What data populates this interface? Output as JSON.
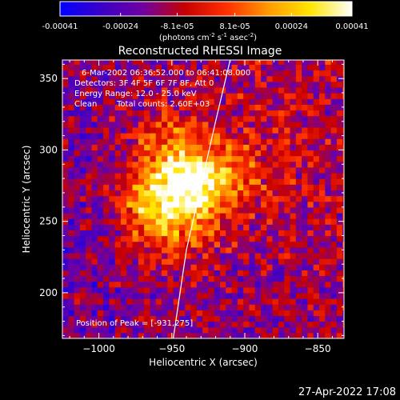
{
  "colorbar": {
    "ticks": [
      "-0.00041",
      "-0.00024",
      "-8.1e-05",
      "8.1e-05",
      "0.00024",
      "0.00041"
    ],
    "tick_values": [
      -0.00041,
      -0.00024,
      -8.1e-05,
      8.1e-05,
      0.00024,
      0.00041
    ],
    "range": [
      -0.00041,
      0.00041
    ],
    "unit_base": "(photons cm",
    "unit_sup1": "-2",
    "unit_mid": " s",
    "unit_sup2": "-1",
    "unit_end": " asec",
    "unit_sup3": "-2",
    "unit_close": ")",
    "colormap": [
      "#0000ff",
      "#3b00c8",
      "#7000a0",
      "#c80000",
      "#ff3000",
      "#ff9a00",
      "#ffe600",
      "#ffffff"
    ]
  },
  "annotations": {
    "time_range": "6-Mar-2002 06:36:52.000 to 06:41:08.000",
    "detectors": "Detectors: 3F 4F 5F 6F 7F 8F, Att 0",
    "energy": "Energy Range: 12.0 - 25.0 keV",
    "clean_label": "Clean",
    "total_counts": "Total counts: 2.60E+03",
    "peak": "Position of Peak = [-931,275]"
  },
  "footer": {
    "timestamp": "27-Apr-2022 17:08"
  },
  "chart_data": {
    "type": "heatmap",
    "title": "Reconstructed RHESSI Image",
    "xlabel": "Heliocentric X (arcsec)",
    "ylabel": "Heliocentric Y (arcsec)",
    "xlim": [
      -1025,
      -832
    ],
    "ylim": [
      168,
      363
    ],
    "xticks": [
      -1000,
      -950,
      -900,
      -850
    ],
    "xtick_labels": [
      "−1000",
      "−950",
      "−900",
      "−850"
    ],
    "yticks": [
      200,
      250,
      300,
      350
    ],
    "ytick_labels": [
      "200",
      "250",
      "300",
      "350"
    ],
    "peak": [
      -931,
      275
    ],
    "limb": [
      [
        -949,
        168
      ],
      [
        -940,
        230
      ],
      [
        -930,
        275
      ],
      [
        -920,
        320
      ],
      [
        -910,
        363
      ]
    ],
    "limb_color": "#ffffff",
    "sources": [
      {
        "x": -945,
        "y": 275,
        "sx": 22,
        "sy": 28,
        "amp": 0.95
      },
      {
        "x": -932,
        "y": 277,
        "sx": 10,
        "sy": 10,
        "amp": 0.35
      },
      {
        "x": -966,
        "y": 256,
        "sx": 12,
        "sy": 12,
        "amp": 0.3
      },
      {
        "x": -908,
        "y": 285,
        "sx": 10,
        "sy": 12,
        "amp": 0.2
      },
      {
        "x": -885,
        "y": 292,
        "sx": 15,
        "sy": 30,
        "amp": 0.15
      }
    ]
  }
}
